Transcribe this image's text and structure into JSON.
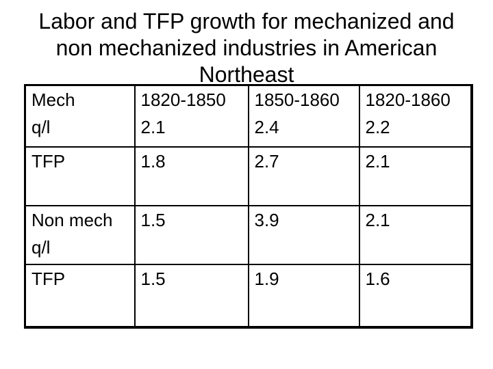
{
  "slide": {
    "background_color": "#ffffff",
    "text_color": "#000000",
    "border_color": "#000000",
    "title_lines": [
      "Labor and TFP growth for mechanized and",
      "non mechanized industries in American",
      "Northeast"
    ],
    "title_full": "Labor and TFP growth for mechanized and non mechanized industries in American Northeast"
  },
  "table": {
    "rows": [
      {
        "cells": [
          {
            "line1": "Mech",
            "line2": "q/l"
          },
          {
            "line1": "1820-1850",
            "line2": "2.1"
          },
          {
            "line1": "1850-1860",
            "line2": "2.4"
          },
          {
            "line1": "1820-1860",
            "line2": "2.2"
          }
        ]
      },
      {
        "cells": [
          {
            "line1": "TFP",
            "line2": ""
          },
          {
            "line1": "1.8",
            "line2": ""
          },
          {
            "line1": "2.7",
            "line2": ""
          },
          {
            "line1": "2.1",
            "line2": ""
          }
        ]
      },
      {
        "cells": [
          {
            "line1": "Non mech",
            "line2": "q/l"
          },
          {
            "line1": "1.5",
            "line2": ""
          },
          {
            "line1": "3.9",
            "line2": ""
          },
          {
            "line1": "2.1",
            "line2": ""
          }
        ]
      },
      {
        "cells": [
          {
            "line1": "TFP",
            "line2": ""
          },
          {
            "line1": "1.5",
            "line2": ""
          },
          {
            "line1": "1.9",
            "line2": ""
          },
          {
            "line1": "1.6",
            "line2": ""
          }
        ]
      }
    ]
  }
}
